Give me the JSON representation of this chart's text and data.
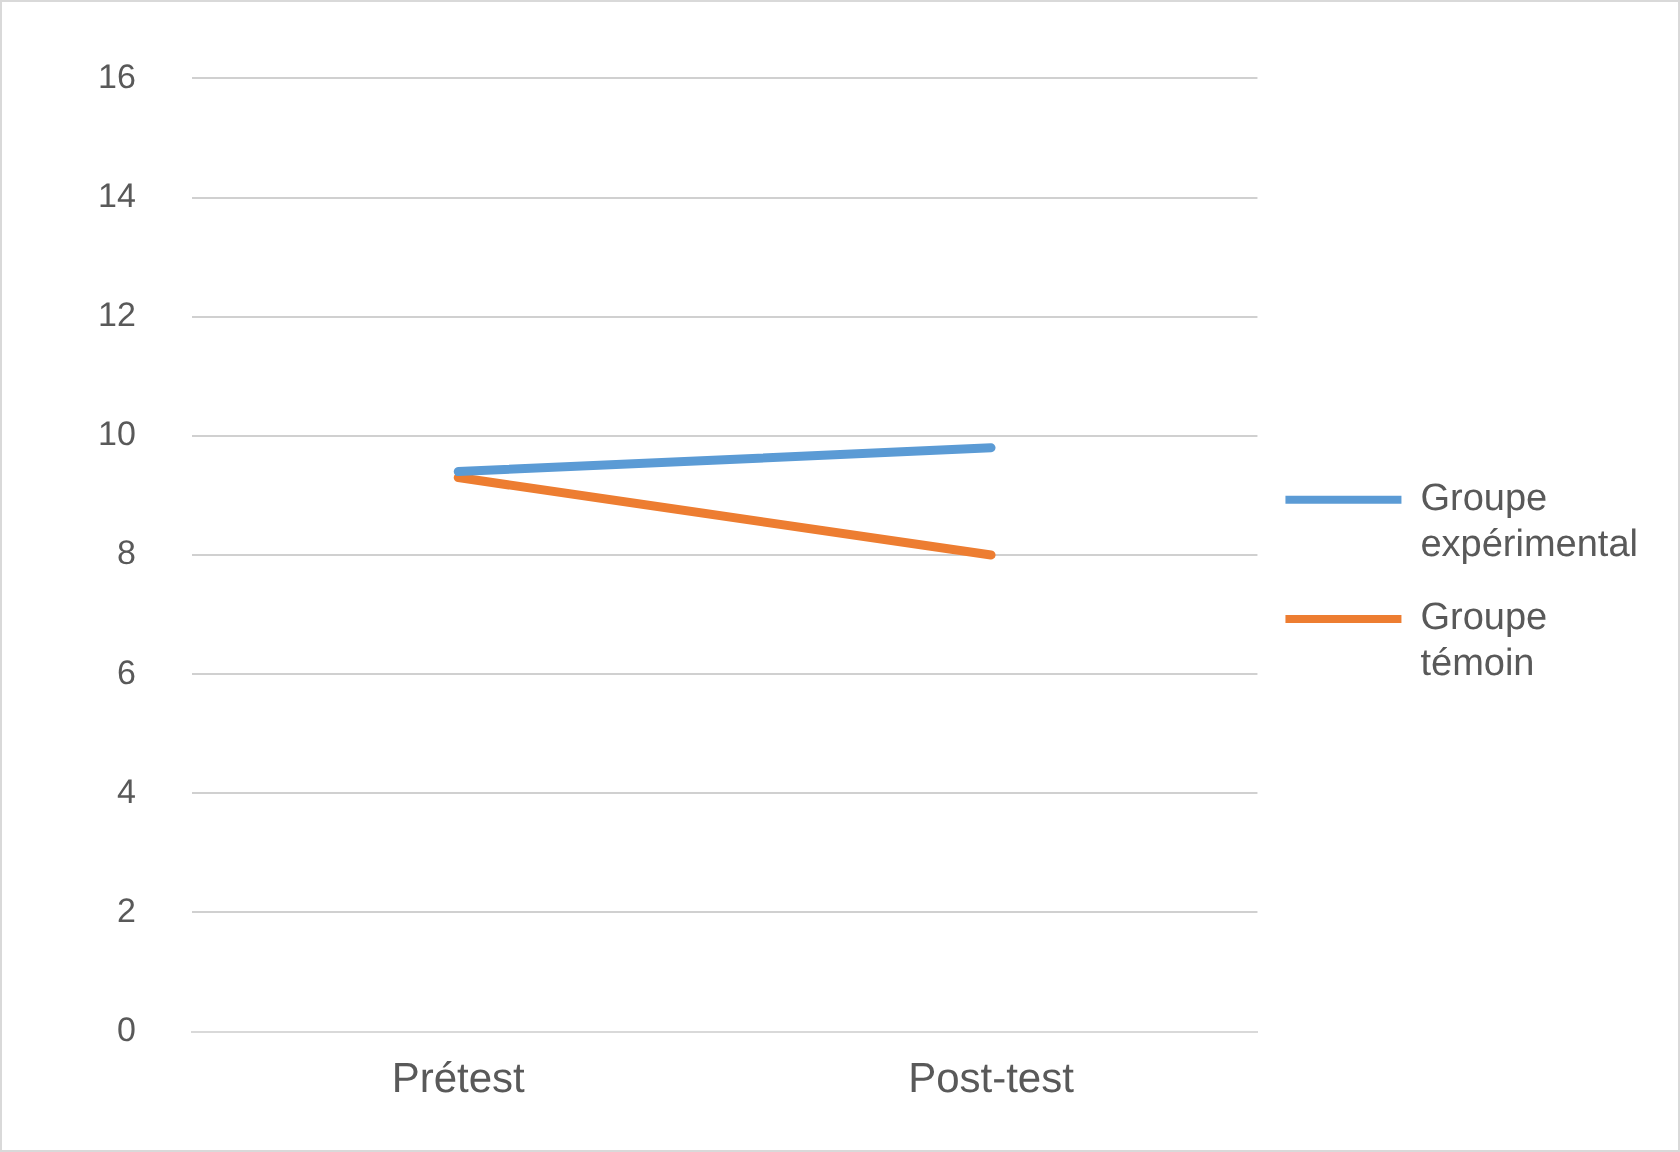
{
  "chart_data": {
    "type": "line",
    "categories": [
      "Prétest",
      "Post-test"
    ],
    "series": [
      {
        "name": "Groupe expérimental",
        "color": "#5b9bd5",
        "values": [
          9.4,
          9.8
        ]
      },
      {
        "name": "Groupe témoin",
        "color": "#ed7d31",
        "values": [
          9.3,
          8.0
        ]
      }
    ],
    "ylim": [
      0,
      16
    ],
    "yticks": [
      0,
      2,
      4,
      6,
      8,
      10,
      12,
      14,
      16
    ],
    "grid": "y",
    "legend": "right",
    "marker": "none",
    "line_style": "solid"
  }
}
